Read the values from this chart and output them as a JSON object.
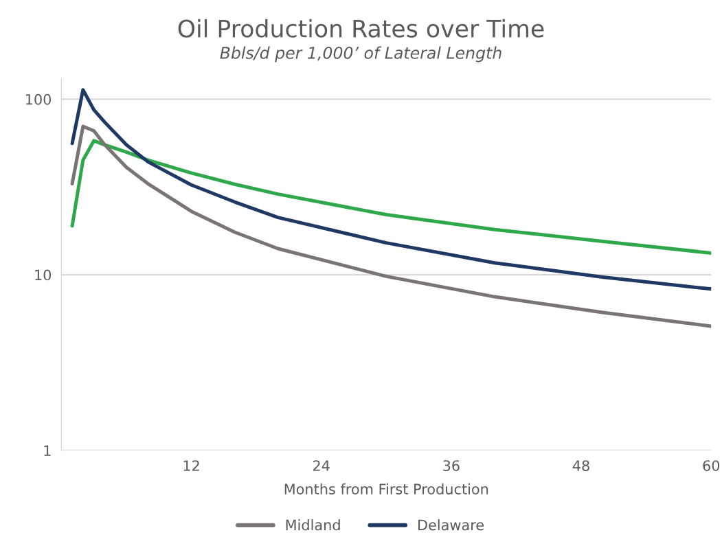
{
  "chart_data": {
    "type": "line",
    "title": "Oil Production Rates over Time",
    "subtitle": "Bbls/d per 1,000’ of Lateral Length",
    "xlabel": "Months from First Production",
    "x": [
      1,
      2,
      3,
      4,
      6,
      8,
      12,
      16,
      20,
      30,
      40,
      50,
      60
    ],
    "series": [
      {
        "color": "#2ea84a",
        "values": [
          19,
          45,
          58,
          55,
          50,
          45,
          38,
          32.8,
          28.8,
          22,
          18.1,
          15.5,
          13.3
        ]
      },
      {
        "name": "Midland",
        "color": "#7a7474",
        "values": [
          33,
          70,
          66,
          55,
          41,
          33,
          23,
          17.5,
          14.1,
          9.8,
          7.5,
          6.1,
          5.1
        ]
      },
      {
        "name": "Delaware",
        "color": "#1f3864",
        "values": [
          56,
          113,
          87,
          74,
          55,
          44,
          32.5,
          26,
          21.2,
          15.2,
          11.7,
          9.7,
          8.3
        ]
      }
    ],
    "log": true,
    "xlim": [
      0,
      60
    ],
    "xticks": [
      12,
      24,
      36,
      48,
      60
    ],
    "ylim": [
      1,
      130
    ],
    "yticks": [
      1,
      10,
      100
    ],
    "grid": "y",
    "legend": "bottom",
    "marker": "none",
    "line_style": "solid"
  }
}
